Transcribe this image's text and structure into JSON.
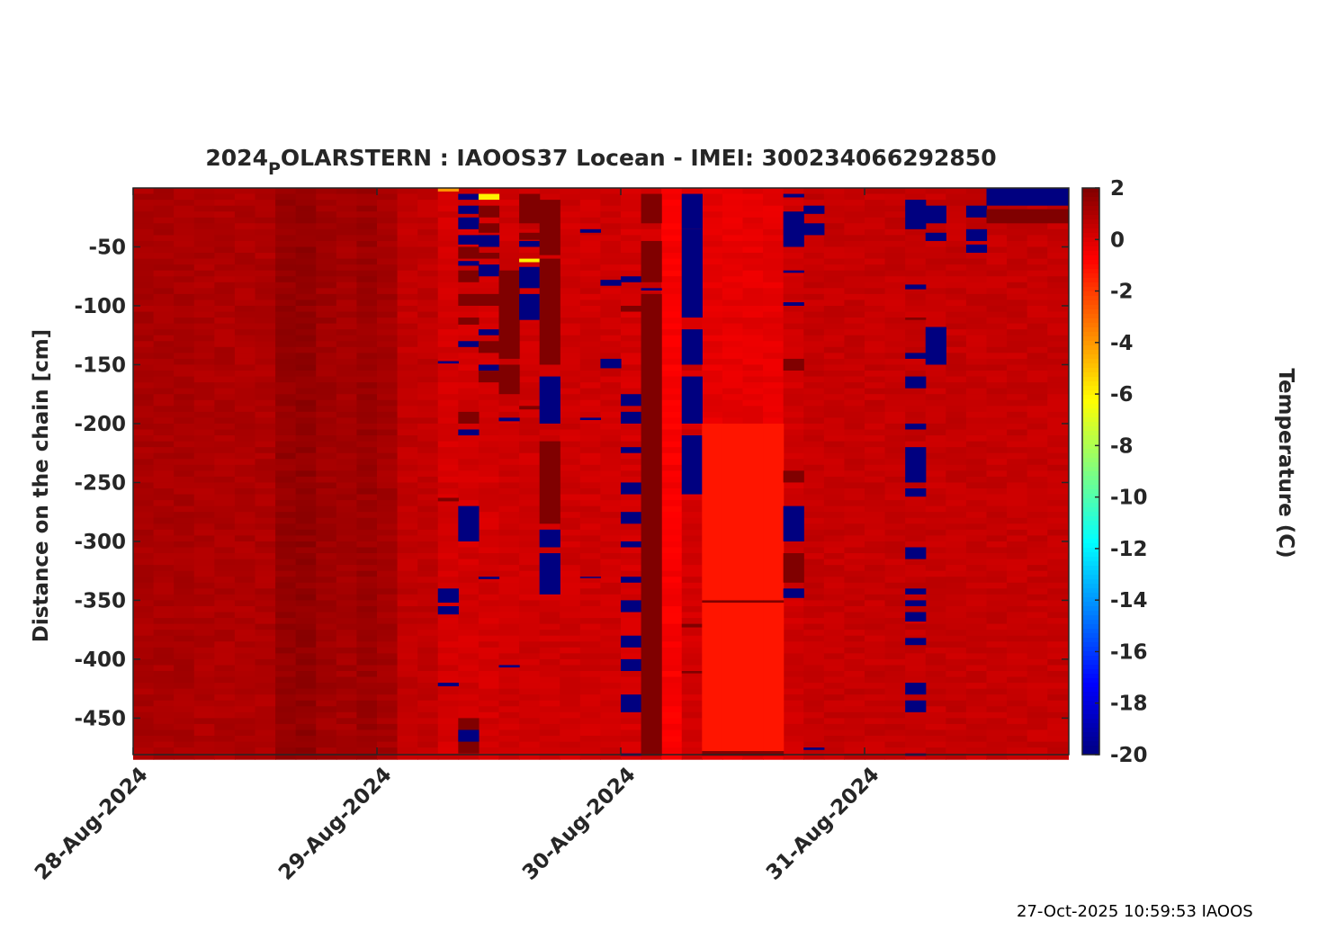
{
  "chart_data": {
    "type": "heatmap",
    "title_main": "2024",
    "title_sub": "P",
    "title_rest": "OLARSTERN : IAOOS37  Locean - IMEI: 300234066292850",
    "ylabel": "Distance on the chain [cm]",
    "colorbar_label": "Temperature (C)",
    "colormap": "jet",
    "clim": [
      -20,
      2
    ],
    "ylim": [
      -481,
      0
    ],
    "x_start": "2024-08-28 00:00",
    "time_step_hours": 2,
    "x_ticks": [
      "28-Aug-2024",
      "29-Aug-2024",
      "30-Aug-2024",
      "31-Aug-2024"
    ],
    "y_ticks": [
      -50,
      -100,
      -150,
      -200,
      -250,
      -300,
      -350,
      -400,
      -450
    ],
    "colorbar_ticks": [
      2,
      0,
      -2,
      -4,
      -6,
      -8,
      -10,
      -12,
      -14,
      -16,
      -18,
      -20
    ],
    "column_base_temperature": [
      1.1,
      1.1,
      1.1,
      1.0,
      1.0,
      1.0,
      1.0,
      1.5,
      1.6,
      1.3,
      1.2,
      1.4,
      1.2,
      0.6,
      0.6,
      0.2,
      0.2,
      0.2,
      0.3,
      0.3,
      0.3,
      0.3,
      0.3,
      0.3,
      0.2,
      0.3,
      -0.6,
      0.2,
      -0.2,
      -0.2,
      -0.2,
      -0.2,
      0.3,
      0.5,
      0.5,
      0.5,
      0.5,
      0.5,
      0.5,
      0.5,
      0.5,
      0.5,
      0.5,
      0.5,
      0.5,
      0.5,
      0.5
    ],
    "segments_col_top_bottom_temp": [
      [
        15,
        -340,
        -352,
        -20
      ],
      [
        15,
        -355,
        -362,
        -20
      ],
      [
        15,
        -420,
        -423,
        -20
      ],
      [
        15,
        -147,
        -149,
        -20
      ],
      [
        15,
        -263,
        -266,
        2
      ],
      [
        15,
        0,
        -3,
        -4
      ],
      [
        16,
        -5,
        -10,
        -20
      ],
      [
        16,
        -15,
        -22,
        -20
      ],
      [
        16,
        -25,
        -35,
        -20
      ],
      [
        16,
        -40,
        -48,
        -20
      ],
      [
        16,
        -50,
        -60,
        2
      ],
      [
        16,
        -62,
        -66,
        -20
      ],
      [
        16,
        -70,
        -80,
        2
      ],
      [
        16,
        -90,
        -100,
        2
      ],
      [
        16,
        -110,
        -116,
        2
      ],
      [
        16,
        -130,
        -135,
        -20
      ],
      [
        16,
        -190,
        -200,
        2
      ],
      [
        16,
        -205,
        -210,
        -20
      ],
      [
        16,
        -270,
        -300,
        -20
      ],
      [
        16,
        -450,
        -480,
        2
      ],
      [
        16,
        -460,
        -470,
        -20
      ],
      [
        17,
        -5,
        -10,
        -6
      ],
      [
        17,
        -15,
        -25,
        2
      ],
      [
        17,
        -30,
        -38,
        2
      ],
      [
        17,
        -40,
        -50,
        -20
      ],
      [
        17,
        -55,
        -60,
        2
      ],
      [
        17,
        -65,
        -75,
        -20
      ],
      [
        17,
        -90,
        -100,
        2
      ],
      [
        17,
        -120,
        -125,
        -20
      ],
      [
        17,
        -130,
        -140,
        2
      ],
      [
        17,
        -150,
        -155,
        -20
      ],
      [
        17,
        -155,
        -165,
        2
      ],
      [
        17,
        -330,
        -332,
        -20
      ],
      [
        18,
        -70,
        -145,
        2
      ],
      [
        18,
        -150,
        -175,
        2
      ],
      [
        18,
        -195,
        -198,
        -20
      ],
      [
        18,
        -405,
        -407,
        -20
      ],
      [
        19,
        -5,
        -30,
        2
      ],
      [
        19,
        -38,
        -44,
        2
      ],
      [
        19,
        -45,
        -50,
        -20
      ],
      [
        19,
        -60,
        -63,
        -6
      ],
      [
        19,
        -67,
        -85,
        -20
      ],
      [
        19,
        -90,
        -112,
        -20
      ],
      [
        19,
        -185,
        -188,
        2
      ],
      [
        20,
        -10,
        -57,
        2
      ],
      [
        20,
        -60,
        -150,
        2
      ],
      [
        20,
        -160,
        -200,
        -20
      ],
      [
        20,
        -215,
        -285,
        2
      ],
      [
        20,
        -290,
        -305,
        -20
      ],
      [
        20,
        -310,
        -345,
        -20
      ],
      [
        22,
        -35,
        -38,
        -20
      ],
      [
        22,
        -195,
        -197,
        -20
      ],
      [
        22,
        -330,
        -331,
        -20
      ],
      [
        23,
        -78,
        -83,
        -20
      ],
      [
        23,
        -145,
        -153,
        -20
      ],
      [
        24,
        -75,
        -80,
        -20
      ],
      [
        24,
        -100,
        -105,
        2
      ],
      [
        24,
        -175,
        -185,
        -20
      ],
      [
        24,
        -190,
        -200,
        -20
      ],
      [
        24,
        -220,
        -225,
        -20
      ],
      [
        24,
        -250,
        -260,
        -20
      ],
      [
        24,
        -275,
        -285,
        -20
      ],
      [
        24,
        -300,
        -305,
        -20
      ],
      [
        24,
        -330,
        -335,
        -20
      ],
      [
        24,
        -350,
        -360,
        -20
      ],
      [
        24,
        -380,
        -390,
        -20
      ],
      [
        24,
        -400,
        -410,
        -20
      ],
      [
        24,
        -430,
        -445,
        -20
      ],
      [
        24,
        -480,
        -482,
        -20
      ],
      [
        25,
        -5,
        -30,
        2
      ],
      [
        25,
        -45,
        -80,
        2
      ],
      [
        25,
        -85,
        -87,
        -20
      ],
      [
        25,
        -90,
        -482,
        2
      ],
      [
        27,
        -5,
        -35,
        -20
      ],
      [
        27,
        -35,
        -110,
        -20
      ],
      [
        27,
        -120,
        -150,
        -20
      ],
      [
        27,
        -160,
        -200,
        -20
      ],
      [
        27,
        -210,
        -260,
        -20
      ],
      [
        27,
        -370,
        -373,
        2
      ],
      [
        27,
        -410,
        -412,
        2
      ],
      [
        28,
        -200,
        -480,
        -1.2
      ],
      [
        29,
        -200,
        -480,
        -1.2
      ],
      [
        30,
        -200,
        -480,
        -1.2
      ],
      [
        31,
        -200,
        -480,
        -1.2
      ],
      [
        28,
        -350,
        -352,
        2
      ],
      [
        29,
        -350,
        -352,
        2
      ],
      [
        30,
        -350,
        -352,
        2
      ],
      [
        31,
        -350,
        -352,
        2
      ],
      [
        28,
        -478,
        -482,
        2
      ],
      [
        29,
        -478,
        -482,
        2
      ],
      [
        30,
        -478,
        -482,
        2
      ],
      [
        31,
        -478,
        -482,
        2
      ],
      [
        32,
        -5,
        -8,
        -20
      ],
      [
        32,
        -20,
        -50,
        -20
      ],
      [
        32,
        -70,
        -72,
        -20
      ],
      [
        32,
        -97,
        -100,
        -20
      ],
      [
        32,
        -145,
        -155,
        2
      ],
      [
        32,
        -240,
        -250,
        2
      ],
      [
        32,
        -270,
        -300,
        -20
      ],
      [
        32,
        -310,
        -335,
        2
      ],
      [
        32,
        -340,
        -348,
        -20
      ],
      [
        33,
        -15,
        -22,
        -20
      ],
      [
        33,
        -30,
        -40,
        -20
      ],
      [
        33,
        -475,
        -477,
        -20
      ],
      [
        38,
        -10,
        -35,
        -20
      ],
      [
        38,
        -82,
        -86,
        -20
      ],
      [
        38,
        -110,
        -112,
        2
      ],
      [
        38,
        -140,
        -145,
        -20
      ],
      [
        38,
        -160,
        -170,
        -20
      ],
      [
        38,
        -200,
        -205,
        -20
      ],
      [
        38,
        -220,
        -250,
        -20
      ],
      [
        38,
        -255,
        -262,
        -20
      ],
      [
        38,
        -305,
        -315,
        -20
      ],
      [
        38,
        -340,
        -345,
        -20
      ],
      [
        38,
        -350,
        -355,
        -20
      ],
      [
        38,
        -360,
        -368,
        -20
      ],
      [
        38,
        -382,
        -388,
        -20
      ],
      [
        38,
        -420,
        -430,
        -20
      ],
      [
        38,
        -435,
        -445,
        -20
      ],
      [
        38,
        -480,
        -482,
        -20
      ],
      [
        39,
        -15,
        -30,
        -20
      ],
      [
        39,
        -38,
        -45,
        -20
      ],
      [
        39,
        -118,
        -150,
        -20
      ],
      [
        41,
        -15,
        -25,
        -20
      ],
      [
        41,
        -35,
        -45,
        -20
      ],
      [
        41,
        -48,
        -55,
        -20
      ],
      [
        42,
        0,
        -15,
        -20
      ],
      [
        43,
        0,
        -15,
        -20
      ],
      [
        44,
        0,
        -15,
        -20
      ],
      [
        45,
        0,
        -15,
        -20
      ],
      [
        46,
        0,
        -15,
        -20
      ],
      [
        42,
        -18,
        -30,
        2
      ],
      [
        43,
        -18,
        -30,
        2
      ],
      [
        44,
        -18,
        -30,
        2
      ],
      [
        45,
        -18,
        -30,
        2
      ],
      [
        46,
        -18,
        -30,
        2
      ]
    ]
  },
  "footer": "27-Oct-2025 10:59:53 IAOOS"
}
